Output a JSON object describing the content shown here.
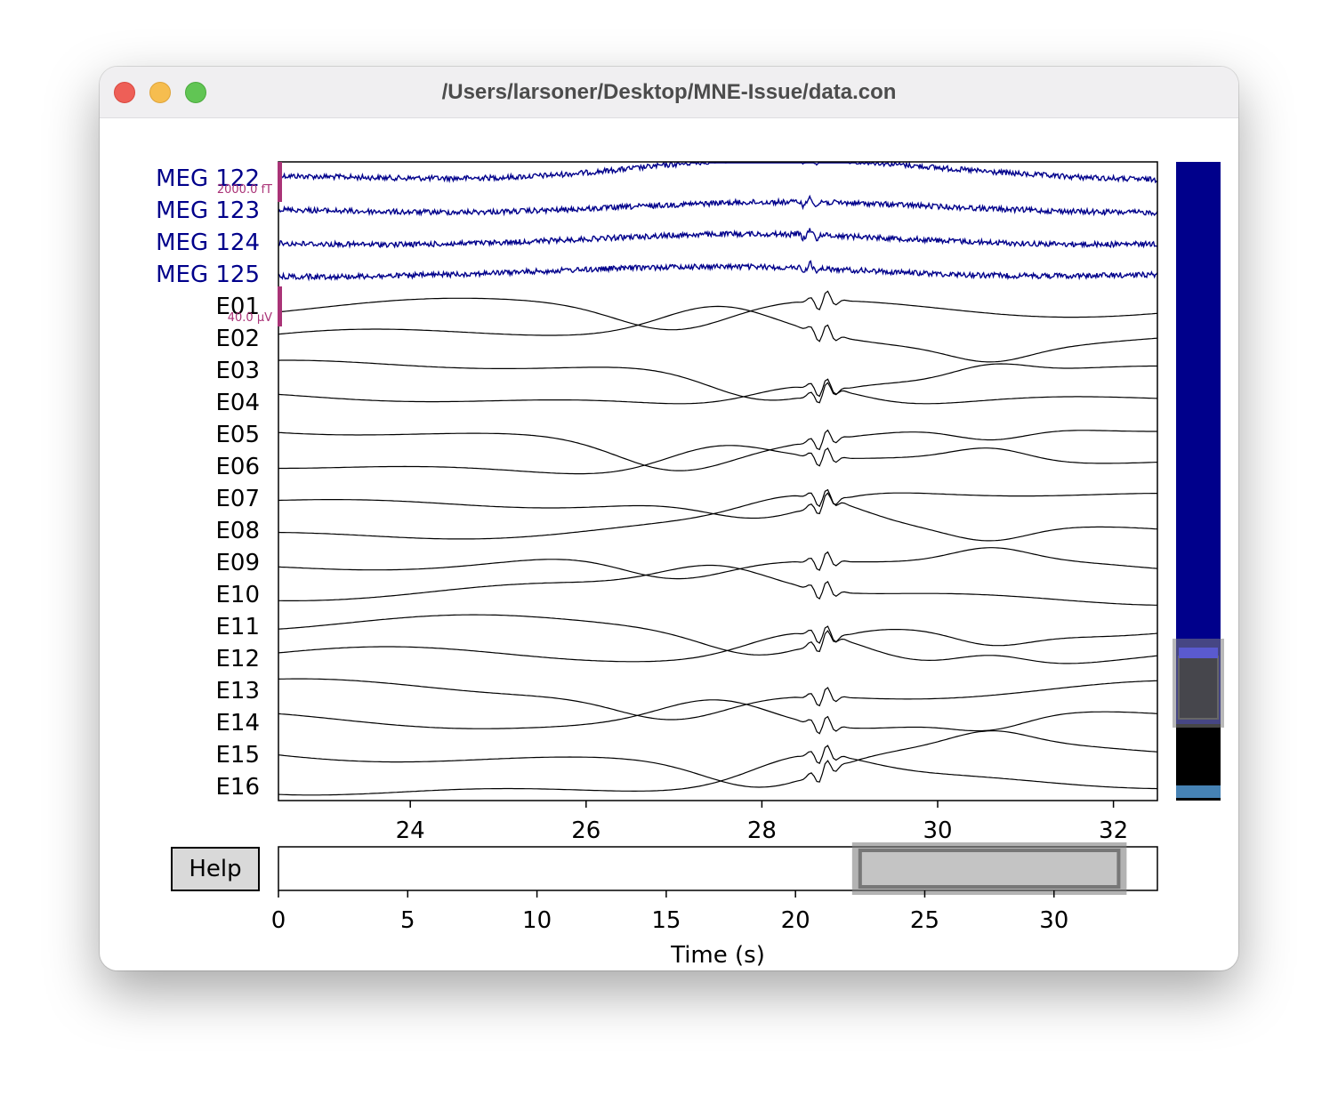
{
  "window": {
    "title": "/Users/larsoner/Desktop/MNE-Issue/data.con"
  },
  "help_button": {
    "label": "Help"
  },
  "colors": {
    "meg": "#00008b",
    "eeg": "#000000",
    "scalebar": "#aa3377",
    "overview_meg": "#00008b",
    "overview_eeg": "#000000",
    "overview_marker": "#4682b4"
  },
  "chart_data": [
    {
      "type": "line",
      "title": "",
      "xlabel": "",
      "ylabel": "",
      "xlim": [
        22.5,
        32.5
      ],
      "x_ticks": [
        "24",
        "26",
        "28",
        "30",
        "32"
      ],
      "channels": [
        {
          "name": "MEG 122",
          "type": "meg"
        },
        {
          "name": "MEG 123",
          "type": "meg"
        },
        {
          "name": "MEG 124",
          "type": "meg"
        },
        {
          "name": "MEG 125",
          "type": "meg"
        },
        {
          "name": "E01",
          "type": "eeg"
        },
        {
          "name": "E02",
          "type": "eeg"
        },
        {
          "name": "E03",
          "type": "eeg"
        },
        {
          "name": "E04",
          "type": "eeg"
        },
        {
          "name": "E05",
          "type": "eeg"
        },
        {
          "name": "E06",
          "type": "eeg"
        },
        {
          "name": "E07",
          "type": "eeg"
        },
        {
          "name": "E08",
          "type": "eeg"
        },
        {
          "name": "E09",
          "type": "eeg"
        },
        {
          "name": "E10",
          "type": "eeg"
        },
        {
          "name": "E11",
          "type": "eeg"
        },
        {
          "name": "E12",
          "type": "eeg"
        },
        {
          "name": "E13",
          "type": "eeg"
        },
        {
          "name": "E14",
          "type": "eeg"
        },
        {
          "name": "E15",
          "type": "eeg"
        },
        {
          "name": "E16",
          "type": "eeg"
        }
      ],
      "scalebars": [
        {
          "label": "2000.0 fT",
          "channel_type": "meg"
        },
        {
          "label": "40.0 µV",
          "channel_type": "eeg"
        }
      ],
      "grid": false
    },
    {
      "type": "bar",
      "xlabel": "Time (s)",
      "xlim": [
        0,
        34
      ],
      "x_ticks": [
        "0",
        "5",
        "10",
        "15",
        "20",
        "25",
        "30"
      ],
      "view_window": [
        22.5,
        32.5
      ]
    }
  ]
}
